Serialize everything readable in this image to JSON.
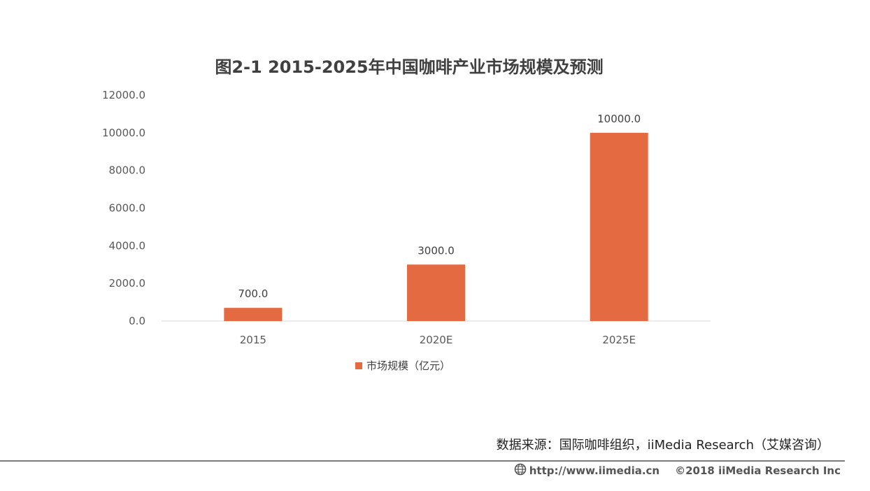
{
  "chart_data": {
    "type": "bar",
    "title": "图2-1 2015-2025年中国咖啡产业市场规模及预测",
    "categories": [
      "2015",
      "2020E",
      "2025E"
    ],
    "series": [
      {
        "name": "市场规模（亿元）",
        "values": [
          700.0,
          3000.0,
          10000.0
        ],
        "color": "#E46A41"
      }
    ],
    "data_labels": [
      "700.0",
      "3000.0",
      "10000.0"
    ],
    "yticks": [
      "0.0",
      "2000.0",
      "4000.0",
      "6000.0",
      "8000.0",
      "10000.0",
      "12000.0"
    ],
    "ylim": [
      0,
      12000
    ],
    "grid": false,
    "legend_position": "bottom"
  },
  "footer": {
    "source": "数据来源：国际咖啡组织，iiMedia Research（艾媒咨询）",
    "url": "http://www.iimedia.cn",
    "copyright": "©2018  iiMedia Research Inc",
    "icon": "globe-icon"
  }
}
